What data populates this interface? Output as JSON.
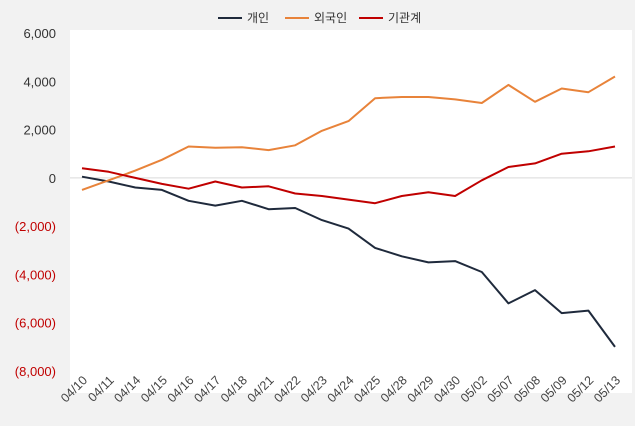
{
  "chart_data": {
    "type": "line",
    "categories": [
      "04/10",
      "04/11",
      "04/14",
      "04/15",
      "04/16",
      "04/17",
      "04/18",
      "04/21",
      "04/22",
      "04/23",
      "04/24",
      "04/25",
      "04/28",
      "04/29",
      "04/30",
      "05/02",
      "05/07",
      "05/08",
      "05/09",
      "05/12",
      "05/13"
    ],
    "series": [
      {
        "name": "개인",
        "color": "#1f2a3c",
        "values": [
          50,
          -150,
          -400,
          -500,
          -950,
          -1150,
          -950,
          -1300,
          -1250,
          -1750,
          -2100,
          -2900,
          -3250,
          -3500,
          -3450,
          -3900,
          -5200,
          -4650,
          -5600,
          -5500,
          -7000
        ]
      },
      {
        "name": "외국인",
        "color": "#e8833a",
        "values": [
          -500,
          -100,
          300,
          750,
          1300,
          1250,
          1270,
          1150,
          1350,
          1950,
          2350,
          3300,
          3350,
          3350,
          3250,
          3100,
          3850,
          3150,
          3700,
          3550,
          4200
        ]
      },
      {
        "name": "기관계",
        "color": "#c00000",
        "values": [
          400,
          250,
          0,
          -250,
          -450,
          -150,
          -400,
          -350,
          -650,
          -750,
          -900,
          -1050,
          -750,
          -600,
          -750,
          -100,
          450,
          600,
          1000,
          1100,
          1300
        ]
      }
    ],
    "ylim": [
      -8000,
      6000
    ],
    "yticks": [
      6000,
      4000,
      2000,
      0,
      -2000,
      -4000,
      -6000,
      -8000
    ],
    "ytick_labels": [
      "6,000",
      "4,000",
      "2,000",
      "0",
      "(2,000)",
      "(4,000)",
      "(6,000)",
      "(8,000)"
    ],
    "negative_tick_color": "#c00000",
    "positive_tick_color": "#333333",
    "zero_line": true,
    "grid": false,
    "legend_position": "top-center"
  }
}
